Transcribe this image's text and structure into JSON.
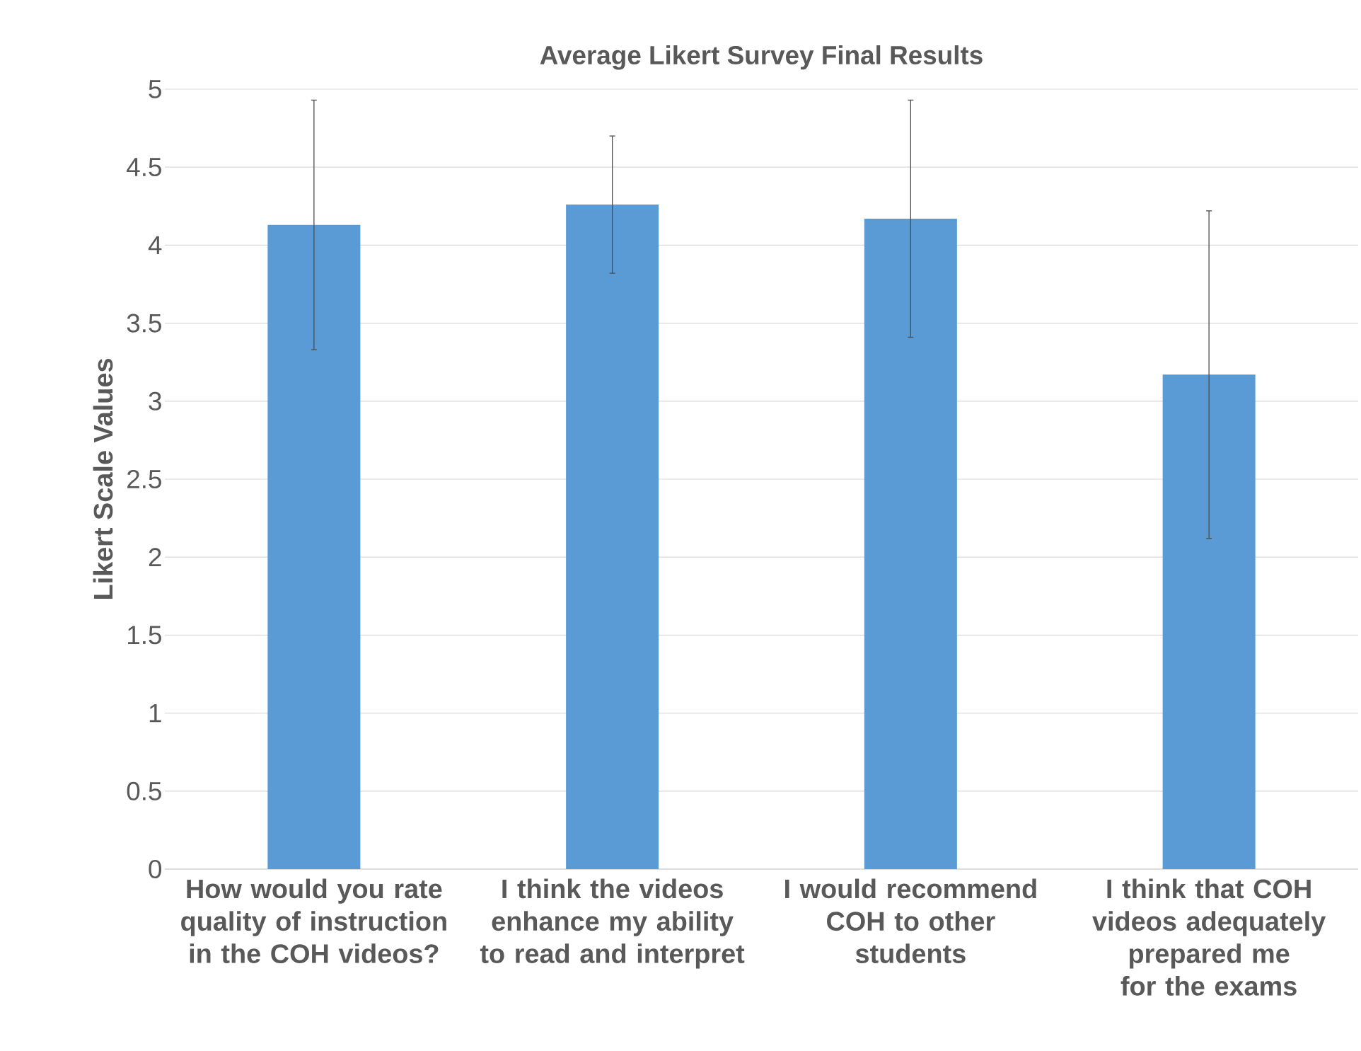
{
  "chart_data": {
    "type": "bar",
    "title": "Average Likert Survey Final Results",
    "ylabel": "Likert Scale Values",
    "categories": [
      "How would you rate quality of instruction in the COH videos?",
      "I think the videos enhance my ability to read and interpret",
      "I would recommend COH to other students",
      "I think that COH videos adequately prepared me for the exams"
    ],
    "values": [
      4.13,
      4.26,
      4.17,
      3.17
    ],
    "errors": [
      0.8,
      0.44,
      0.76,
      1.05
    ],
    "color": "#5b9bd5",
    "ylim": [
      0,
      5
    ],
    "yticks": [
      0,
      0.5,
      1,
      1.5,
      2,
      2.5,
      3,
      3.5,
      4,
      4.5,
      5
    ],
    "grid": "y"
  }
}
